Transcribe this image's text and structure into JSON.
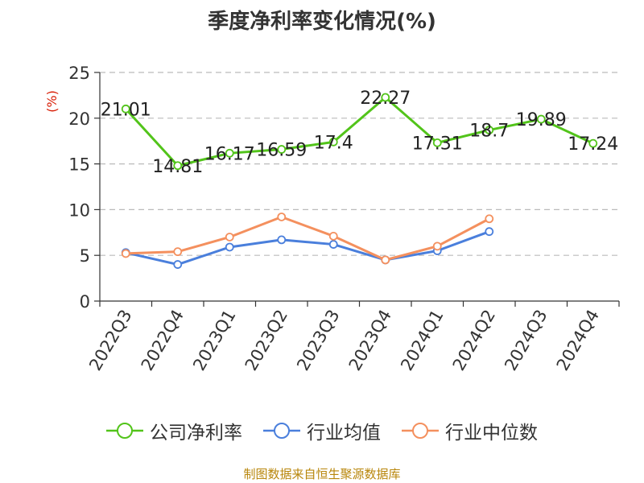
{
  "chart_data": {
    "type": "line",
    "title": "季度净利率变化情况(%)",
    "ylabel": "(%)",
    "xlabel": "",
    "ylim": [
      0,
      25
    ],
    "yticks": [
      0,
      5,
      10,
      15,
      20,
      25
    ],
    "grid": true,
    "legend_position": "bottom",
    "categories": [
      "2022Q3",
      "2022Q4",
      "2023Q1",
      "2023Q2",
      "2023Q3",
      "2023Q4",
      "2024Q1",
      "2024Q2",
      "2024Q3",
      "2024Q4"
    ],
    "series": [
      {
        "name": "公司净利率",
        "color": "#52c41a",
        "values": [
          21.01,
          14.81,
          16.17,
          16.59,
          17.4,
          22.27,
          17.31,
          18.7,
          19.89,
          17.24
        ],
        "labels": [
          "21.01",
          "14.81",
          "16.17",
          "16.59",
          "17.4",
          "22.27",
          "17.31",
          "18.7",
          "19.89",
          "17.24"
        ]
      },
      {
        "name": "行业均值",
        "color": "#4a7fdc",
        "values": [
          5.3,
          4.0,
          5.9,
          6.7,
          6.2,
          4.5,
          5.5,
          7.6,
          null,
          null
        ]
      },
      {
        "name": "行业中位数",
        "color": "#f4905e",
        "values": [
          5.2,
          5.4,
          7.0,
          9.2,
          7.1,
          4.5,
          6.0,
          9.0,
          null,
          null
        ]
      }
    ],
    "source": "制图数据来自恒生聚源数据库"
  }
}
